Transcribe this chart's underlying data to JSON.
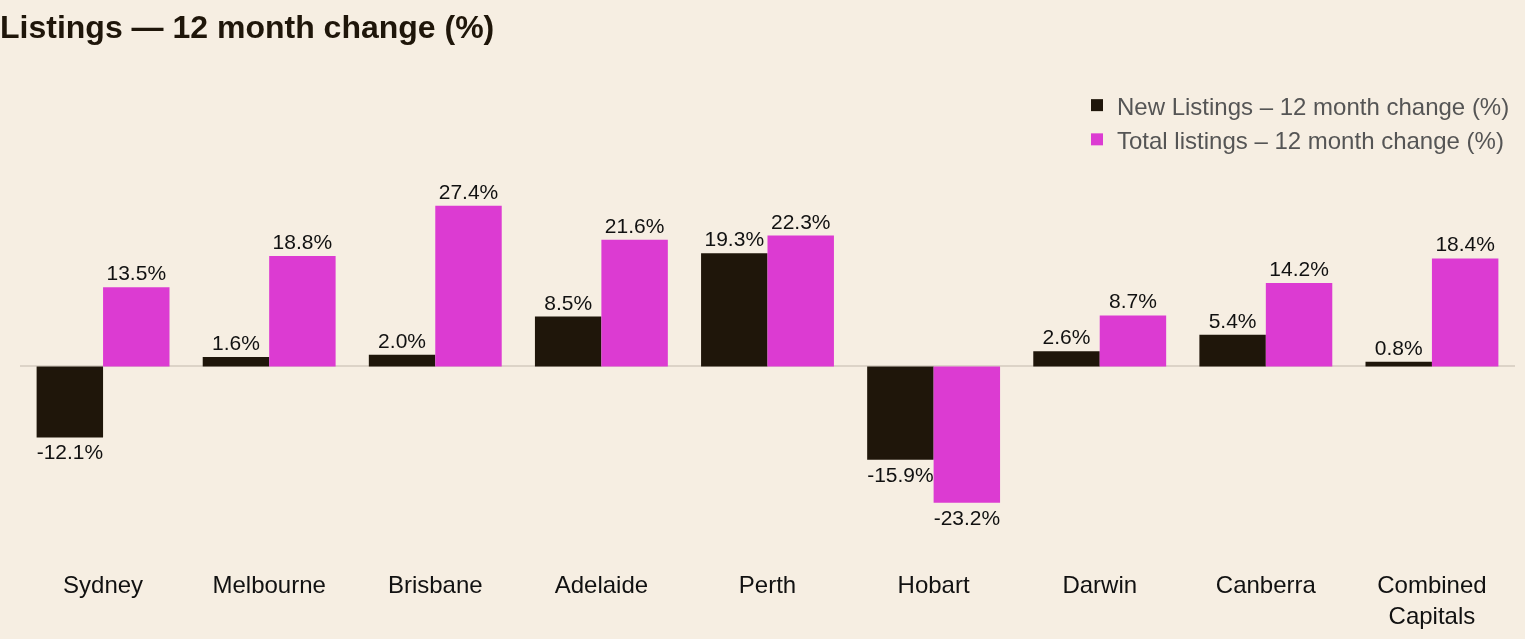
{
  "chart_data": {
    "type": "bar",
    "title": "Listings — 12 month change (%)",
    "categories": [
      "Sydney",
      "Melbourne",
      "Brisbane",
      "Adelaide",
      "Perth",
      "Hobart",
      "Darwin",
      "Canberra",
      "Combined Capitals"
    ],
    "series": [
      {
        "name": "New Listings – 12 month change (%)",
        "color": "#1f160a",
        "values": [
          -12.1,
          1.6,
          2.0,
          8.5,
          19.3,
          -15.9,
          2.6,
          5.4,
          0.8
        ],
        "value_labels": [
          "-12.1%",
          "1.6%",
          "2.0%",
          "8.5%",
          "19.3%",
          "-15.9%",
          "2.6%",
          "5.4%",
          "0.8%"
        ]
      },
      {
        "name": "Total listings – 12 month change (%)",
        "color": "#dc3bd2",
        "values": [
          13.5,
          18.8,
          27.4,
          21.6,
          22.3,
          -23.2,
          8.7,
          14.2,
          18.4
        ],
        "value_labels": [
          "13.5%",
          "18.8%",
          "27.4%",
          "21.6%",
          "22.3%",
          "-23.2%",
          "8.7%",
          "14.2%",
          "18.4%"
        ]
      }
    ],
    "legend": "top right",
    "grid": false
  }
}
